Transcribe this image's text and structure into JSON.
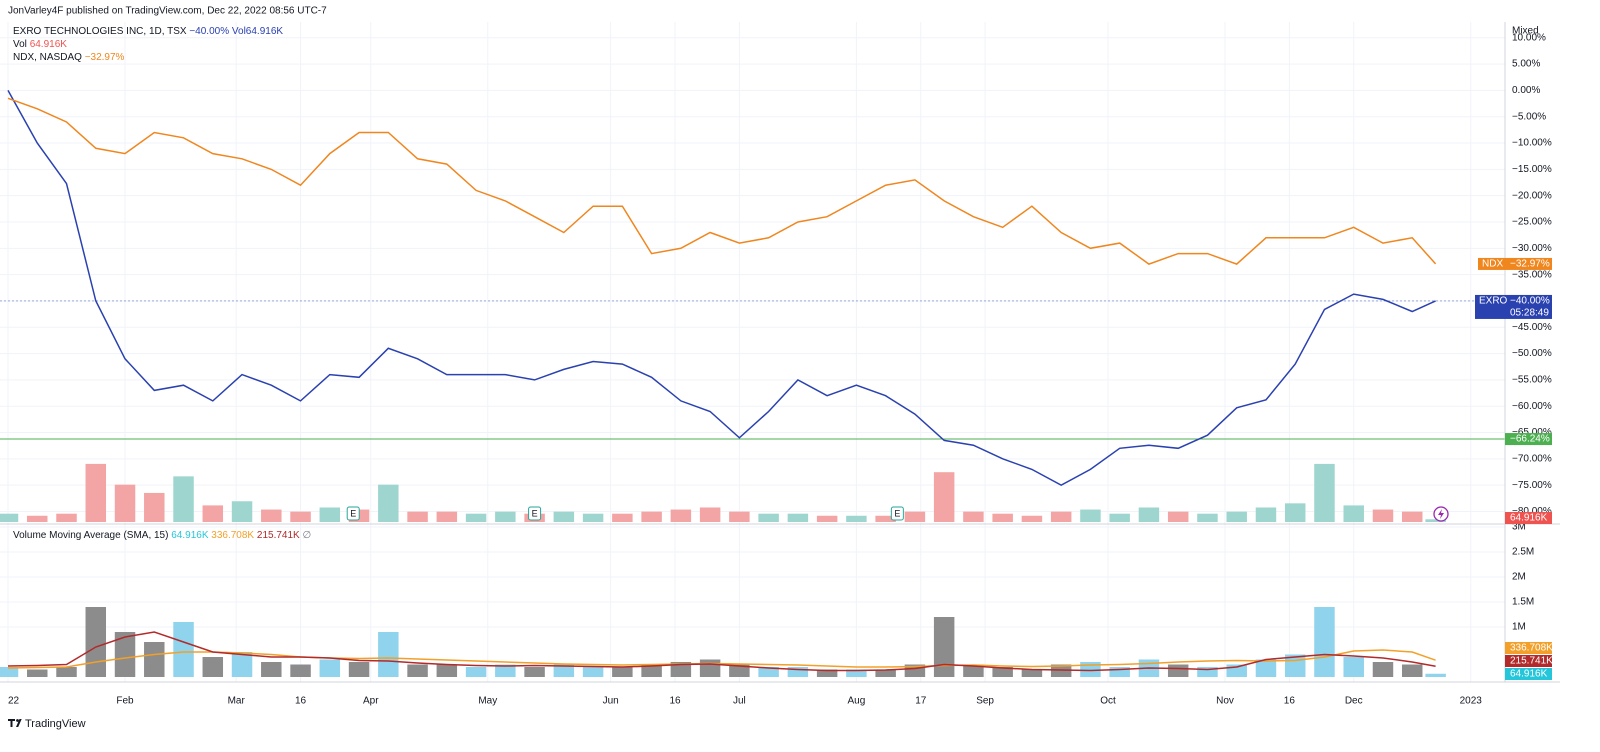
{
  "header": {
    "published": "JonVarley4F published on TradingView.com, Dec 22, 2022 08:56 UTC-7",
    "footer": "TradingView"
  },
  "legend": {
    "main": {
      "symbol": "EXRO TECHNOLOGIES INC, 1D, TSX",
      "change": "−40.00%",
      "vol_label": "Vol",
      "vol": "64.916K"
    },
    "vol": {
      "label": "Vol",
      "value": "64.916K"
    },
    "compare": {
      "symbol": "NDX, NASDAQ",
      "change": "−32.97%"
    },
    "indicator": {
      "name": "Volume Moving Average (SMA, 15)",
      "v1": "64.916K",
      "v2": "336.708K",
      "v3": "215.741K",
      "suffix": "∅"
    }
  },
  "chart_data": [
    {
      "type": "line",
      "scale_label": "Mixed",
      "x": [
        0,
        5,
        10,
        15,
        20,
        25,
        30,
        35,
        40,
        45,
        50,
        55,
        60,
        65,
        70,
        75,
        80,
        85,
        90,
        95,
        100,
        105,
        110,
        115,
        120,
        125,
        130,
        135,
        140,
        145,
        150,
        155,
        160,
        165,
        170,
        175,
        180,
        185,
        190,
        195,
        200,
        205,
        210,
        215,
        220,
        225,
        230,
        235,
        240,
        244
      ],
      "xlim": [
        0,
        255
      ],
      "xticks": [
        {
          "value": 0,
          "label": "22"
        },
        {
          "value": 20,
          "label": "Feb"
        },
        {
          "value": 39,
          "label": "Mar"
        },
        {
          "value": 50,
          "label": "16"
        },
        {
          "value": 62,
          "label": "Apr"
        },
        {
          "value": 82,
          "label": "May"
        },
        {
          "value": 103,
          "label": "Jun"
        },
        {
          "value": 114,
          "label": "16"
        },
        {
          "value": 125,
          "label": "Jul"
        },
        {
          "value": 145,
          "label": "Aug"
        },
        {
          "value": 156,
          "label": "17"
        },
        {
          "value": 167,
          "label": "Sep"
        },
        {
          "value": 188,
          "label": "Oct"
        },
        {
          "value": 208,
          "label": "Nov"
        },
        {
          "value": 219,
          "label": "16"
        },
        {
          "value": 230,
          "label": "Dec"
        },
        {
          "value": 250,
          "label": "2023"
        }
      ],
      "ylim": [
        -82,
        13
      ],
      "yticks": [
        {
          "value": 10,
          "label": "10.00%"
        },
        {
          "value": 5,
          "label": "5.00%"
        },
        {
          "value": 0,
          "label": "0.00%"
        },
        {
          "value": -5,
          "label": "−5.00%"
        },
        {
          "value": -10,
          "label": "−10.00%"
        },
        {
          "value": -15,
          "label": "−15.00%"
        },
        {
          "value": -20,
          "label": "−20.00%"
        },
        {
          "value": -25,
          "label": "−25.00%"
        },
        {
          "value": -30,
          "label": "−30.00%"
        },
        {
          "value": -35,
          "label": "−35.00%"
        },
        {
          "value": -40,
          "label": "−40.00%"
        },
        {
          "value": -45,
          "label": "−45.00%"
        },
        {
          "value": -50,
          "label": "−50.00%"
        },
        {
          "value": -55,
          "label": "−55.00%"
        },
        {
          "value": -60,
          "label": "−60.00%"
        },
        {
          "value": -65,
          "label": "−65.00%"
        },
        {
          "value": -70,
          "label": "−70.00%"
        },
        {
          "value": -75,
          "label": "−75.00%"
        },
        {
          "value": -80,
          "label": "−80.00%"
        }
      ],
      "grid": true,
      "series": [
        {
          "name": "EXRO",
          "color": "#2a41b0",
          "last_label": "−40.00%",
          "countdown": "05:28:49",
          "values": [
            0,
            -10,
            -17.7,
            -40,
            -51,
            -57,
            -56,
            -59,
            -54,
            -56,
            -59,
            -54,
            -54.5,
            -49,
            -51,
            -54,
            -54,
            -54,
            -55,
            -53,
            -51.5,
            -52,
            -54.5,
            -59,
            -61,
            -66,
            -61,
            -55,
            -58,
            -56,
            -58,
            -61.5,
            -66.5,
            -67.4,
            -70,
            -72,
            -75,
            -72,
            -68,
            -67.4,
            -68,
            -65.5,
            -60.3,
            -58.8,
            -52,
            -41.6,
            -38.7,
            -39.7,
            -42,
            -40
          ]
        },
        {
          "name": "NDX",
          "color": "#f0861e",
          "last_label": "−32.97%",
          "values": [
            -1.5,
            -3.5,
            -6,
            -11,
            -12,
            -8,
            -9,
            -12,
            -13,
            -15,
            -18,
            -12,
            -8,
            -8,
            -13,
            -14,
            -19,
            -21,
            -24,
            -27,
            -22,
            -22,
            -31,
            -30,
            -27,
            -29,
            -28,
            -25,
            -24,
            -21,
            -18,
            -17,
            -21,
            -24,
            -26,
            -22,
            -27,
            -30,
            -29,
            -33,
            -31,
            -31,
            -33,
            -28,
            -28,
            -28,
            -26,
            -29,
            -28,
            -32.97
          ]
        }
      ],
      "hlines": [
        {
          "value": -66.24,
          "label": "−66.24%",
          "color": "#4caf50"
        }
      ],
      "volume": {
        "up_color": "#9ed6cf",
        "down_color": "#f3a4a4",
        "last_label": "64.916K",
        "tag_color": "#ef5350",
        "values": [
          200,
          150,
          200,
          1400,
          900,
          700,
          1100,
          400,
          500,
          300,
          250,
          350,
          300,
          900,
          250,
          250,
          200,
          250,
          200,
          250,
          200,
          200,
          250,
          300,
          350,
          250,
          200,
          200,
          150,
          150,
          150,
          250,
          1200,
          250,
          200,
          150,
          250,
          300,
          200,
          350,
          250,
          200,
          250,
          350,
          450,
          1400,
          400,
          300,
          250,
          64.916
        ]
      },
      "earnings": {
        "label": "E",
        "color": "#26a69a",
        "x": [
          59,
          90,
          152
        ]
      }
    },
    {
      "type": "bar",
      "ylim": [
        0,
        3000
      ],
      "yticks": [
        {
          "value": 3000,
          "label": "3M"
        },
        {
          "value": 2500,
          "label": "2.5M"
        },
        {
          "value": 2000,
          "label": "2M"
        },
        {
          "value": 1500,
          "label": "1.5M"
        },
        {
          "value": 1000,
          "label": "1M"
        }
      ],
      "bar_colors": {
        "up": "#8fd3ec",
        "down": "#8c8c8c"
      },
      "bar_last_label": "64.916K",
      "bar_tag_color": "#26c6da",
      "series": [
        {
          "color": "#f2a02a",
          "last_label": "336.708K",
          "values": [
            180,
            190,
            200,
            300,
            380,
            450,
            500,
            500,
            480,
            450,
            400,
            380,
            370,
            380,
            360,
            340,
            320,
            300,
            280,
            260,
            250,
            240,
            250,
            260,
            270,
            260,
            250,
            240,
            220,
            200,
            200,
            210,
            230,
            240,
            220,
            210,
            220,
            240,
            250,
            270,
            300,
            320,
            330,
            320,
            330,
            400,
            520,
            540,
            500,
            336.708
          ]
        },
        {
          "color": "#b22a2a",
          "last_label": "215.741K",
          "values": [
            220,
            230,
            250,
            600,
            800,
            900,
            700,
            500,
            450,
            400,
            400,
            380,
            330,
            320,
            280,
            250,
            230,
            220,
            230,
            220,
            210,
            200,
            220,
            250,
            260,
            220,
            180,
            150,
            130,
            130,
            140,
            170,
            250,
            220,
            180,
            150,
            140,
            130,
            150,
            180,
            170,
            150,
            200,
            350,
            400,
            450,
            420,
            380,
            300,
            215.741
          ]
        }
      ]
    }
  ]
}
